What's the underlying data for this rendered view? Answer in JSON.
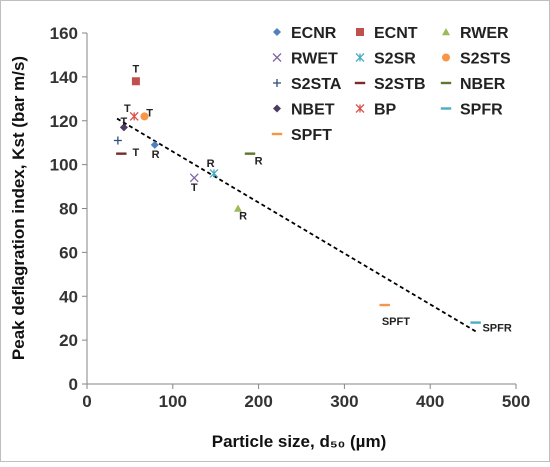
{
  "chart_data": {
    "type": "scatter",
    "title": "",
    "xlabel": "Particle size, d₅₀ (µm)",
    "ylabel": "Peak deflagration index, Kst (bar m/s)",
    "xlim": [
      0,
      500
    ],
    "ylim": [
      0,
      160
    ],
    "xticks": [
      0,
      100,
      200,
      300,
      400,
      500
    ],
    "yticks": [
      0,
      20,
      40,
      60,
      80,
      100,
      120,
      140,
      160
    ],
    "grid": false,
    "legend_position": "top-right",
    "series": [
      {
        "name": "ECNR",
        "marker": "diamond",
        "color": "#4f81bd",
        "points": [
          {
            "x": 79,
            "y": 109
          }
        ]
      },
      {
        "name": "ECNT",
        "marker": "square",
        "color": "#c0504d",
        "points": [
          {
            "x": 57,
            "y": 138
          }
        ]
      },
      {
        "name": "RWER",
        "marker": "triangle",
        "color": "#9bbb59",
        "points": [
          {
            "x": 176,
            "y": 80
          }
        ]
      },
      {
        "name": "RWET",
        "marker": "x",
        "color": "#8064a2",
        "points": [
          {
            "x": 125,
            "y": 94
          }
        ]
      },
      {
        "name": "S2SR",
        "marker": "star",
        "color": "#4bacc6",
        "points": [
          {
            "x": 148,
            "y": 96
          }
        ]
      },
      {
        "name": "S2STS",
        "marker": "circle",
        "color": "#f79646",
        "points": [
          {
            "x": 67,
            "y": 122
          }
        ]
      },
      {
        "name": "S2STA",
        "marker": "plus",
        "color": "#2c4d75",
        "points": [
          {
            "x": 36,
            "y": 111
          }
        ]
      },
      {
        "name": "S2STB",
        "marker": "dash",
        "color": "#772c2a",
        "points": [
          {
            "x": 40,
            "y": 105
          }
        ]
      },
      {
        "name": "NBER",
        "marker": "dash",
        "color": "#5f7530",
        "points": [
          {
            "x": 190,
            "y": 105
          }
        ]
      },
      {
        "name": "NBET",
        "marker": "diamond",
        "color": "#4d3b62",
        "points": [
          {
            "x": 43,
            "y": 117
          }
        ]
      },
      {
        "name": "BP",
        "marker": "star",
        "color": "#d9534f",
        "points": [
          {
            "x": 55,
            "y": 122
          }
        ]
      },
      {
        "name": "SPFR",
        "marker": "dash",
        "color": "#4bacc6",
        "points": [
          {
            "x": 453,
            "y": 28
          }
        ]
      },
      {
        "name": "SPFT",
        "marker": "dash",
        "color": "#f79646",
        "points": [
          {
            "x": 347,
            "y": 36
          }
        ]
      }
    ],
    "trendline": {
      "style": "dashed",
      "color": "#000000",
      "x": [
        35,
        453
      ],
      "y": [
        121,
        24
      ]
    },
    "annotations": [
      {
        "text": "T",
        "x": 57,
        "y": 142
      },
      {
        "text": "T",
        "x": 47,
        "y": 124
      },
      {
        "text": "T",
        "x": 73,
        "y": 122
      },
      {
        "text": "T",
        "x": 43,
        "y": 118
      },
      {
        "text": "T",
        "x": 57,
        "y": 104
      },
      {
        "text": "R",
        "x": 80,
        "y": 103
      },
      {
        "text": "R",
        "x": 144,
        "y": 99
      },
      {
        "text": "T",
        "x": 125,
        "y": 88
      },
      {
        "text": "R",
        "x": 200,
        "y": 100
      },
      {
        "text": "R",
        "x": 182,
        "y": 75
      },
      {
        "text": "SPFT",
        "x": 360,
        "y": 27
      },
      {
        "text": "SPFR",
        "x": 478,
        "y": 24
      }
    ]
  }
}
